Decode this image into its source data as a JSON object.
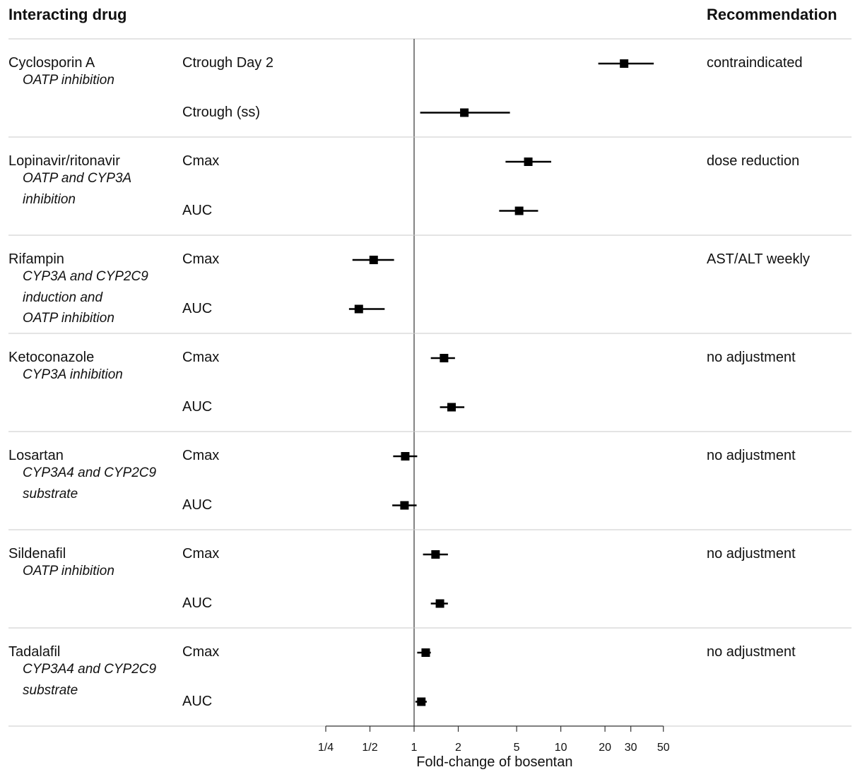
{
  "headers": {
    "left": "Interacting drug",
    "right": "Recommendation"
  },
  "chart_data": {
    "type": "forest",
    "title": "",
    "xlabel": "Fold-change of bosentan",
    "xscale": "log",
    "xlim": [
      0.25,
      50
    ],
    "reference_line": 1,
    "xticks": [
      {
        "value": 0.25,
        "label": "1/4"
      },
      {
        "value": 0.5,
        "label": "1/2"
      },
      {
        "value": 1,
        "label": "1"
      },
      {
        "value": 2,
        "label": "2"
      },
      {
        "value": 5,
        "label": "5"
      },
      {
        "value": 10,
        "label": "10"
      },
      {
        "value": 20,
        "label": "20"
      },
      {
        "value": 30,
        "label": "30"
      },
      {
        "value": 50,
        "label": "50"
      }
    ],
    "groups": [
      {
        "drug": "Cyclosporin A",
        "mechanism": [
          "OATP inhibition"
        ],
        "recommendation": "contraindicated",
        "rows": [
          {
            "parameter": "Ctrough Day 2",
            "estimate": 27,
            "lower": 18,
            "upper": 43
          },
          {
            "parameter": "Ctrough (ss)",
            "estimate": 2.2,
            "lower": 1.1,
            "upper": 4.5
          }
        ]
      },
      {
        "drug": "Lopinavir/ritonavir",
        "mechanism": [
          "OATP and CYP3A",
          "inhibition"
        ],
        "recommendation": "dose reduction",
        "rows": [
          {
            "parameter": "Cmax",
            "estimate": 6.0,
            "lower": 4.2,
            "upper": 8.6
          },
          {
            "parameter": "AUC",
            "estimate": 5.2,
            "lower": 3.8,
            "upper": 7.0
          }
        ]
      },
      {
        "drug": "Rifampin",
        "mechanism": [
          "CYP3A and CYP2C9",
          "induction and",
          "OATP inhibition"
        ],
        "recommendation": "AST/ALT weekly",
        "rows": [
          {
            "parameter": "Cmax",
            "estimate": 0.53,
            "lower": 0.38,
            "upper": 0.73
          },
          {
            "parameter": "AUC",
            "estimate": 0.42,
            "lower": 0.36,
            "upper": 0.63
          }
        ]
      },
      {
        "drug": "Ketoconazole",
        "mechanism": [
          "CYP3A inhibition"
        ],
        "recommendation": "no adjustment",
        "rows": [
          {
            "parameter": "Cmax",
            "estimate": 1.6,
            "lower": 1.3,
            "upper": 1.9
          },
          {
            "parameter": "AUC",
            "estimate": 1.8,
            "lower": 1.5,
            "upper": 2.2
          }
        ]
      },
      {
        "drug": "Losartan",
        "mechanism": [
          "CYP3A4 and CYP2C9",
          "substrate"
        ],
        "recommendation": "no adjustment",
        "rows": [
          {
            "parameter": "Cmax",
            "estimate": 0.87,
            "lower": 0.72,
            "upper": 1.05
          },
          {
            "parameter": "AUC",
            "estimate": 0.86,
            "lower": 0.71,
            "upper": 1.04
          }
        ]
      },
      {
        "drug": "Sildenafil",
        "mechanism": [
          "OATP inhibition"
        ],
        "recommendation": "no adjustment",
        "rows": [
          {
            "parameter": "Cmax",
            "estimate": 1.4,
            "lower": 1.15,
            "upper": 1.7
          },
          {
            "parameter": "AUC",
            "estimate": 1.5,
            "lower": 1.3,
            "upper": 1.7
          }
        ]
      },
      {
        "drug": "Tadalafil",
        "mechanism": [
          "CYP3A4 and CYP2C9",
          "substrate"
        ],
        "recommendation": "no adjustment",
        "rows": [
          {
            "parameter": "Cmax",
            "estimate": 1.2,
            "lower": 1.05,
            "upper": 1.3
          },
          {
            "parameter": "AUC",
            "estimate": 1.12,
            "lower": 1.02,
            "upper": 1.22
          }
        ]
      }
    ]
  }
}
